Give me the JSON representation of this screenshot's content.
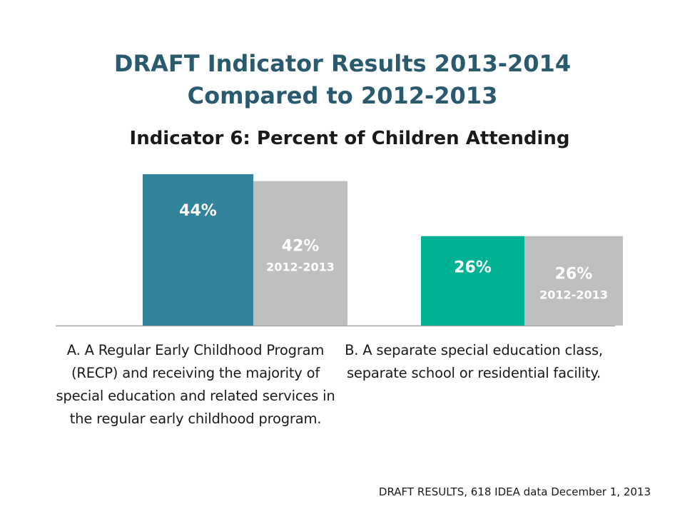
{
  "title_line1": "DRAFT Indicator Results 2013-2014",
  "title_line2": "Compared to 2012-2013",
  "subtitle": "Indicator 6: Percent of Children Attending",
  "footer": "DRAFT RESULTS, 618 IDEA data December 1, 2013",
  "colors": {
    "current_a": "#31849b",
    "current_b": "#00b294",
    "prior": "#bfbfbf",
    "axis": "#a6a6a6"
  },
  "chart_data": {
    "type": "bar",
    "categories": [
      "A.  A Regular Early Childhood Program (RECP) and receiving the majority of special education and related services in the regular early childhood program.",
      "B.  A separate special education class, separate school or residential facility."
    ],
    "series": [
      {
        "values": [
          44,
          26
        ],
        "labels": [
          "44%",
          "26%"
        ]
      },
      {
        "values": [
          42,
          26
        ],
        "labels": [
          "42%",
          "26%"
        ],
        "sublabel": "2012-2013"
      }
    ],
    "ylim": [
      0,
      44
    ],
    "grid": false,
    "legend": "none"
  }
}
